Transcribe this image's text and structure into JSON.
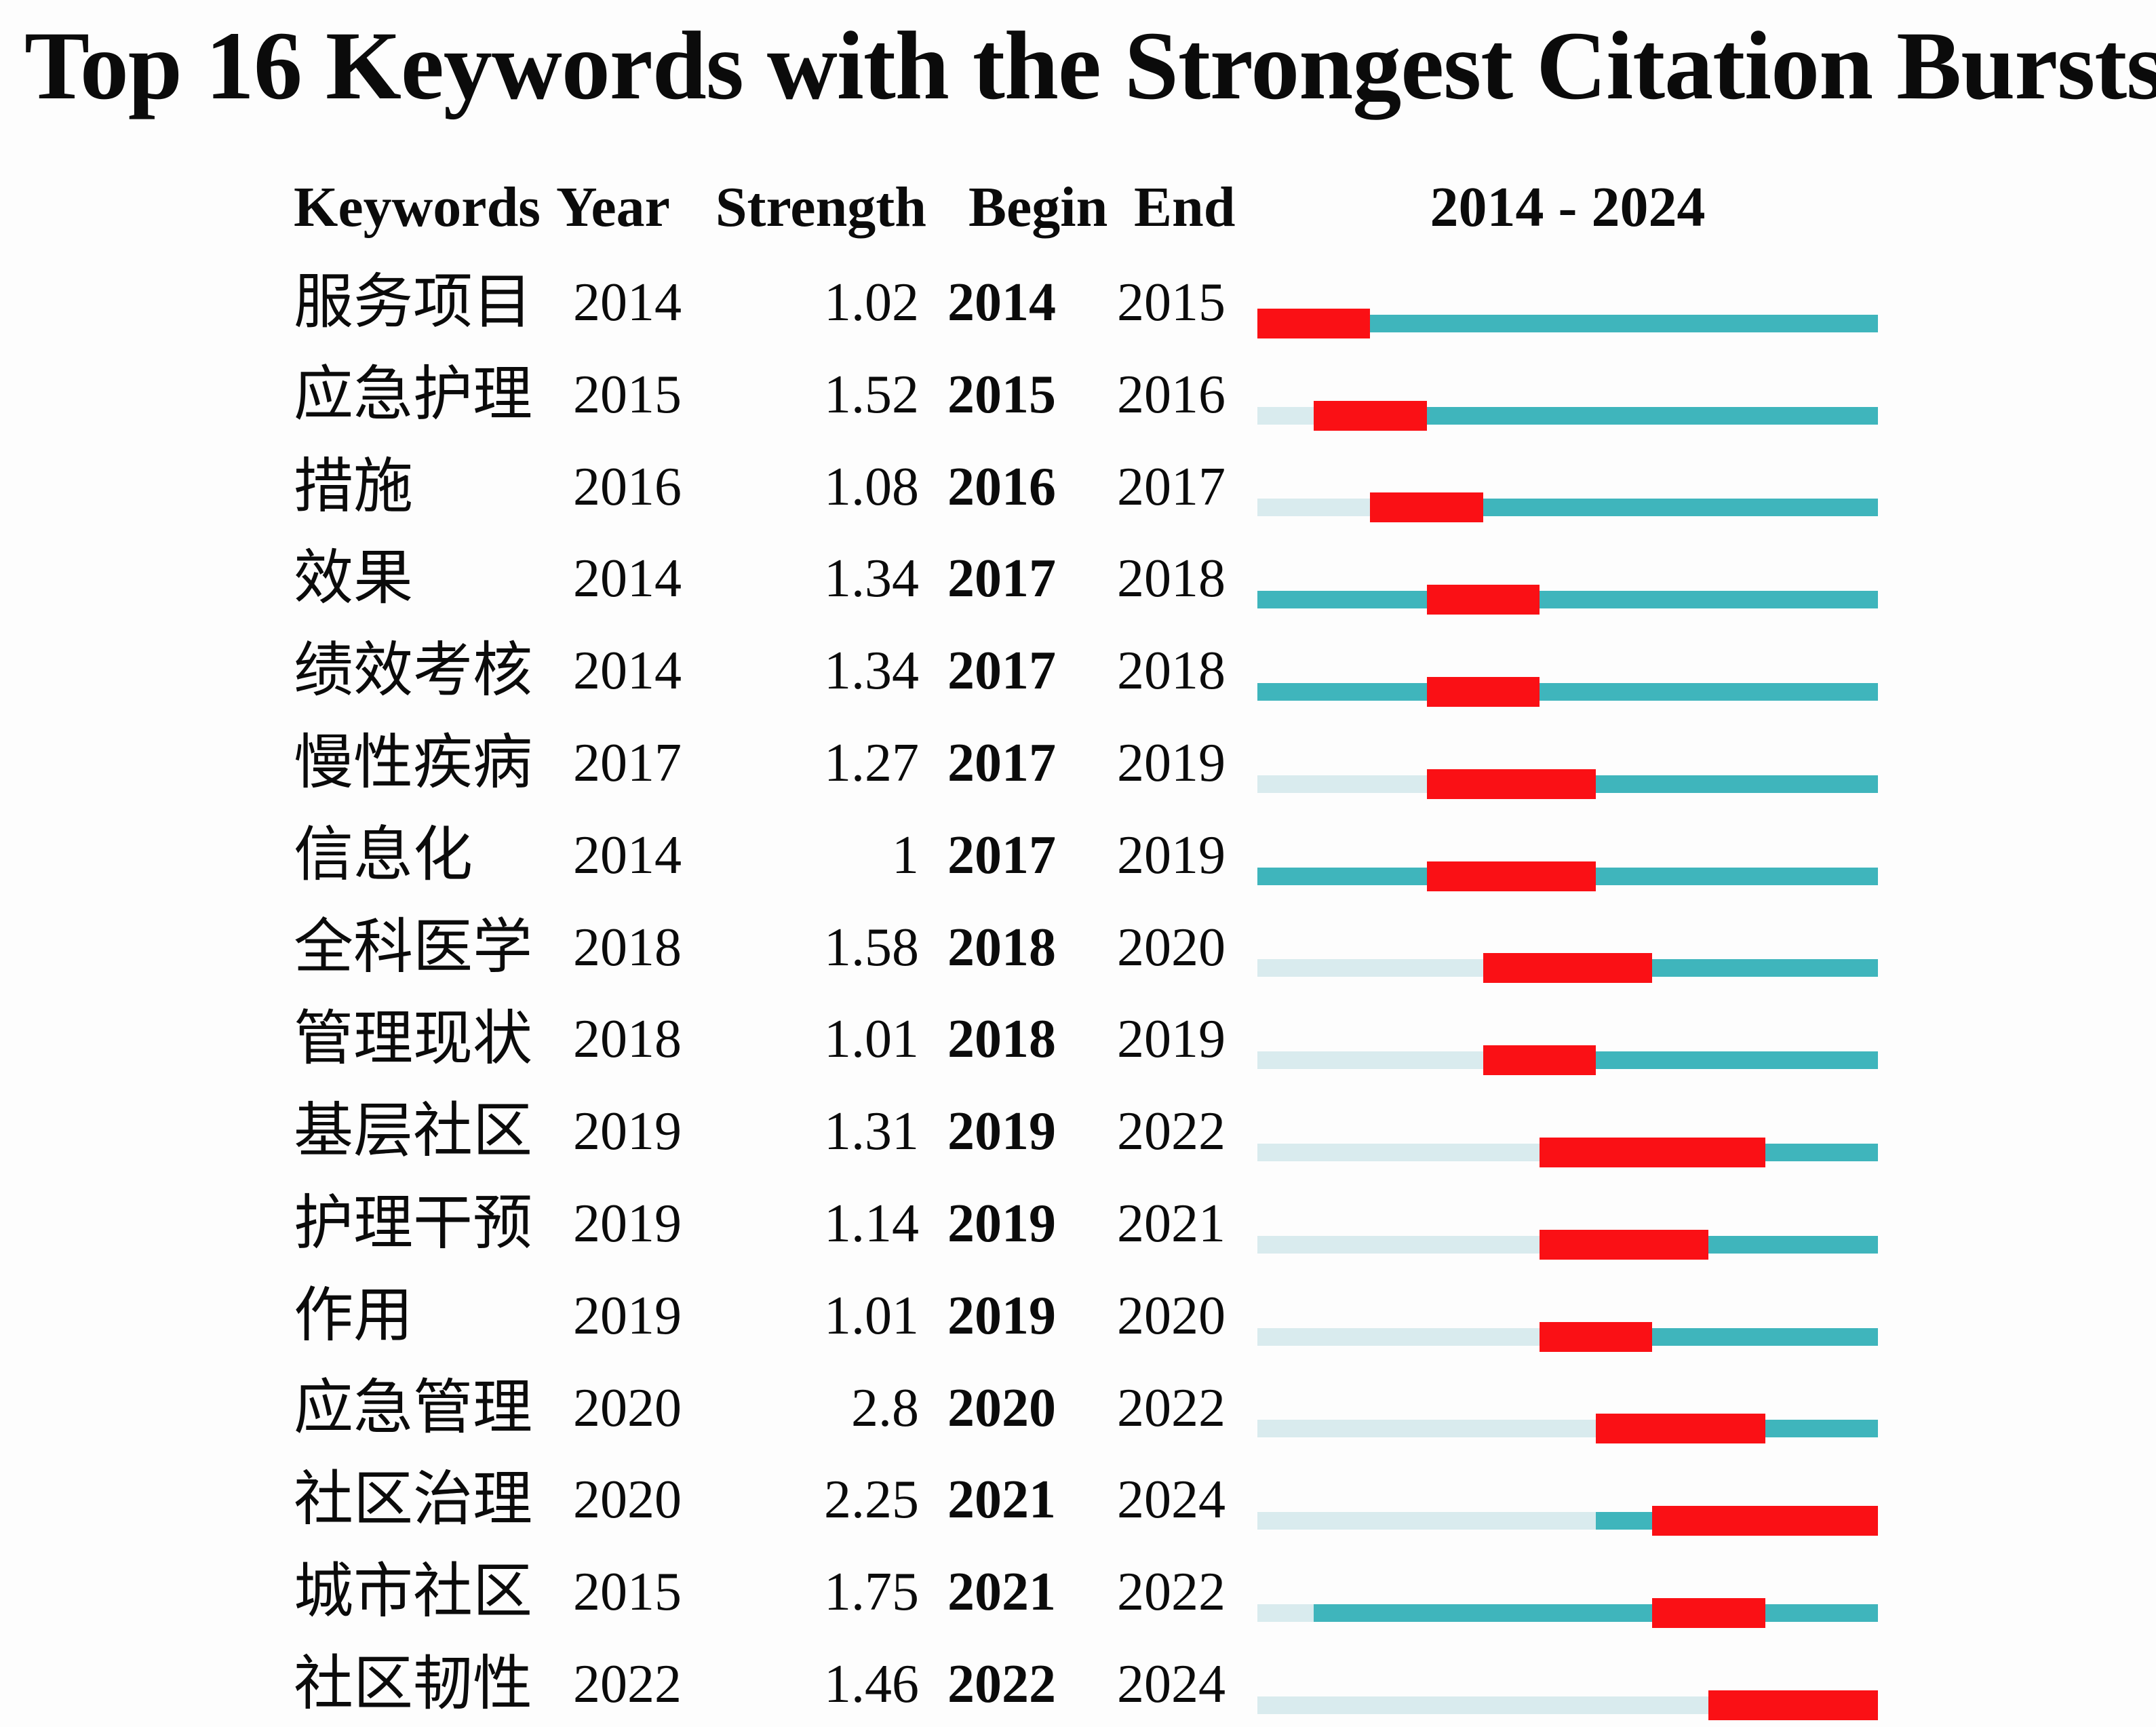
{
  "title": "Top 16 Keywords with the Strongest Citation Bursts",
  "columns": {
    "keywords": "Keywords",
    "year": "Year",
    "strength": "Strength",
    "begin": "Begin",
    "end": "End",
    "timeline": "2014 - 2024"
  },
  "colors": {
    "burst": "#fa1015",
    "active": "#3fb5bc",
    "inactive": "#d9ebee"
  },
  "chart_data": {
    "type": "table",
    "subtype": "citation-burst-timeline",
    "title": "Top 16 Keywords with the Strongest Citation Bursts",
    "columns": [
      "Keywords",
      "Year",
      "Strength",
      "Begin",
      "End",
      "2014 - 2024"
    ],
    "timeline_range": [
      2014,
      2024
    ],
    "legend": {
      "burst_color_meaning": "burst period (Begin-End)",
      "active_color_meaning": "keyword present",
      "inactive_color_meaning": "before first appearance"
    },
    "rows": [
      {
        "keyword": "服务项目",
        "year": 2014,
        "strength": "1.02",
        "begin": 2014,
        "end": 2015
      },
      {
        "keyword": "应急护理",
        "year": 2015,
        "strength": "1.52",
        "begin": 2015,
        "end": 2016
      },
      {
        "keyword": "措施",
        "year": 2016,
        "strength": "1.08",
        "begin": 2016,
        "end": 2017
      },
      {
        "keyword": "效果",
        "year": 2014,
        "strength": "1.34",
        "begin": 2017,
        "end": 2018
      },
      {
        "keyword": "绩效考核",
        "year": 2014,
        "strength": "1.34",
        "begin": 2017,
        "end": 2018
      },
      {
        "keyword": "慢性疾病",
        "year": 2017,
        "strength": "1.27",
        "begin": 2017,
        "end": 2019
      },
      {
        "keyword": "信息化",
        "year": 2014,
        "strength": "1",
        "begin": 2017,
        "end": 2019
      },
      {
        "keyword": "全科医学",
        "year": 2018,
        "strength": "1.58",
        "begin": 2018,
        "end": 2020
      },
      {
        "keyword": "管理现状",
        "year": 2018,
        "strength": "1.01",
        "begin": 2018,
        "end": 2019
      },
      {
        "keyword": "基层社区",
        "year": 2019,
        "strength": "1.31",
        "begin": 2019,
        "end": 2022
      },
      {
        "keyword": "护理干预",
        "year": 2019,
        "strength": "1.14",
        "begin": 2019,
        "end": 2021
      },
      {
        "keyword": "作用",
        "year": 2019,
        "strength": "1.01",
        "begin": 2019,
        "end": 2020
      },
      {
        "keyword": "应急管理",
        "year": 2020,
        "strength": "2.8",
        "begin": 2020,
        "end": 2022
      },
      {
        "keyword": "社区治理",
        "year": 2020,
        "strength": "2.25",
        "begin": 2021,
        "end": 2024
      },
      {
        "keyword": "城市社区",
        "year": 2015,
        "strength": "1.75",
        "begin": 2021,
        "end": 2022
      },
      {
        "keyword": "社区韧性",
        "year": 2022,
        "strength": "1.46",
        "begin": 2022,
        "end": 2024
      }
    ]
  }
}
